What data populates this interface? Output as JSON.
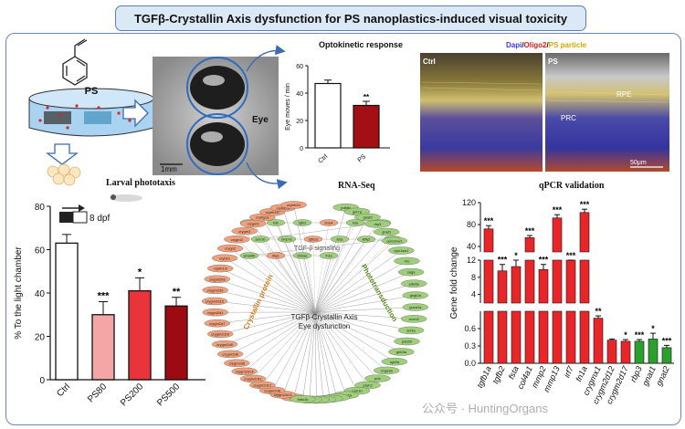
{
  "title": "TGFβ-Crystallin Axis dysfunction for PS nanoplastics-induced visual toxicity",
  "schematic": {
    "ps_label": "PS",
    "eye_label": "Eye",
    "scale_bar": "1mm"
  },
  "okr": {
    "title": "Optokinetic response",
    "ylabel": "Eye moves / min",
    "categories": [
      "Ctrl",
      "PS"
    ],
    "values": [
      47,
      31
    ],
    "errors": [
      2.5,
      3
    ],
    "ylim": [
      0,
      60
    ],
    "ticks": [
      "0",
      "20",
      "40",
      "60"
    ],
    "sig": [
      "",
      "**"
    ]
  },
  "histology": {
    "legend": {
      "dapi": "Dapi",
      "sep1": "/",
      "oligo2": "Oligo2",
      "sep2": "/",
      "ps": "PS particle"
    },
    "panels": [
      "Ctrl",
      "PS"
    ],
    "labels": {
      "rpe": "RPE",
      "prc": "PRC",
      "scale": "50μm"
    }
  },
  "phototaxis": {
    "title": "Larval phototaxis",
    "dpf": "8 dpf",
    "ylabel": "% To the light chamber",
    "categories": [
      "Ctrl",
      "PS80",
      "PS200",
      "PS500"
    ],
    "values": [
      63,
      30,
      41,
      34
    ],
    "errors": [
      4,
      6,
      6,
      4
    ],
    "ylim": [
      0,
      80
    ],
    "ticks": [
      "0",
      "20",
      "40",
      "60",
      "80"
    ],
    "sig": [
      "",
      "***",
      "*",
      "**"
    ],
    "colors": [
      "#ffffff",
      "#f4a6a6",
      "#e8343a",
      "#9c0b12"
    ]
  },
  "rnaseq": {
    "title": "RNA-Seq",
    "center1": "TGFβ-Crystallin Axis",
    "center2": "Eye dysfunction",
    "tgf": "TGF-β signaling",
    "crystallin": "Crystallin protein",
    "photo": "Phototransduction",
    "left_nodes": [
      "cryga",
      "crygm2d13",
      "crygm2d8",
      "crygm2d12",
      "crygm2d11",
      "crygm2d14",
      "crygm2d5",
      "crygm2d6",
      "crygm2d9",
      "crygm2d10",
      "crygm2d7",
      "crygm2d1",
      "crygm2d15",
      "crygm2d2",
      "crygm2d3",
      "crybb1l3",
      "crybb1",
      "crygn2",
      "crygm2",
      "crygm3",
      "crygm5",
      "crybg1a",
      "crybb1l2",
      "cryba2a",
      "crybb1l1"
    ],
    "right_nodes": [
      "pde6c",
      "grk7a",
      "gnat2",
      "rbp3",
      "gnat1",
      "opn1mw1",
      "opn1sw1",
      "rho",
      "saga",
      "pde6a",
      "gngt2a",
      "guca1a",
      "rcvrn2",
      "arr3a",
      "pde6h",
      "gnb3a",
      "rgs9a",
      "cnga3a",
      "pdc",
      "prph2",
      "rom1b",
      "guca1b"
    ],
    "top_nodes": [
      "cdh1",
      "fstb",
      "tgfb2",
      "bmp4",
      "fsta",
      "smad7",
      "acvr1b",
      "bmp7a",
      "tgfb1a",
      "id2a",
      "lefty2",
      "nog2",
      "smad6b",
      "ltbp1",
      "inhbaa",
      "fn1a"
    ],
    "bottom_nodes": [
      "col4a1",
      "mmp2",
      "mmp13",
      "lrf7",
      "gdf6a",
      "thbs1b"
    ]
  },
  "qpcr": {
    "title": "qPCR validation",
    "ylabel": "Gene fold change",
    "genes": [
      "tgfb1a",
      "tgfb2",
      "fsta",
      "col4a1",
      "mmp2",
      "mmp13",
      "irf7",
      "fn1a",
      "crygmx1",
      "crygm2d12",
      "crygm2d17",
      "rbp3",
      "gnat1",
      "gnat2"
    ],
    "values": [
      72,
      9.5,
      10.5,
      56,
      9.8,
      92,
      24,
      102,
      0.78,
      0.4,
      0.38,
      0.38,
      0.42,
      0.27
    ],
    "errors": [
      6,
      1.5,
      1.5,
      4,
      1.2,
      6,
      2,
      6,
      0.04,
      0.02,
      0.03,
      0.03,
      0.1,
      0.04
    ],
    "sig": [
      "***",
      "***",
      "*",
      "***",
      "***",
      "***",
      "***",
      "***",
      "**",
      "",
      "*",
      "***",
      "*",
      "***"
    ],
    "colors": [
      "#e8262a",
      "#e8262a",
      "#e8262a",
      "#e8262a",
      "#e8262a",
      "#e8262a",
      "#e8262a",
      "#e8262a",
      "#e8262a",
      "#e8262a",
      "#e8262a",
      "#2ca02c",
      "#2ca02c",
      "#2ca02c"
    ],
    "axis_breaks": [
      {
        "range": [
          30,
          120
        ],
        "ticks": [
          "40",
          "80",
          "120"
        ]
      },
      {
        "range": [
          2,
          12
        ],
        "ticks": [
          "4",
          "8",
          "12"
        ]
      },
      {
        "range": [
          0,
          0.9
        ],
        "ticks": [
          "0.0",
          "0.3",
          "0.6"
        ]
      }
    ]
  },
  "watermark": "公众号 · HuntingOrgans"
}
